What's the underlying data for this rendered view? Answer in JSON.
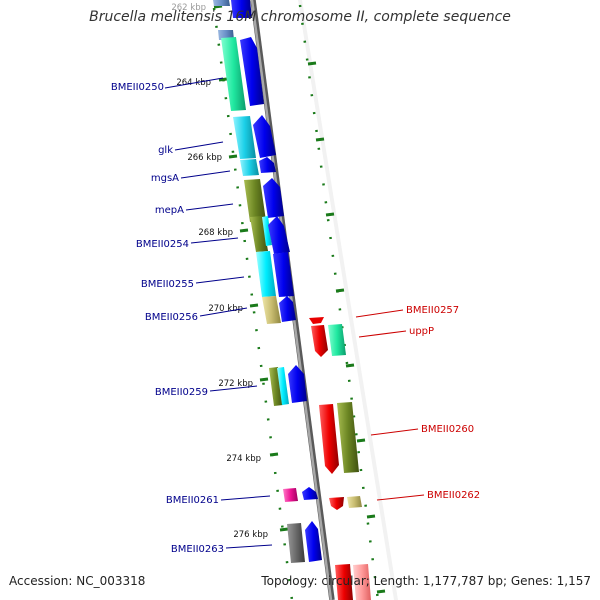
{
  "title": "Brucella melitensis 16M chromosome II, complete sequence",
  "footer": {
    "accession": "Accession: NC_003318",
    "topology": "Topology: circular; Length: 1,177,787 bp; Genes: 1,157"
  },
  "colors": {
    "label_forward": "#00008b",
    "label_reverse": "#cc0000",
    "backbone": "#808080",
    "ring_tick": "#1a7a1a"
  },
  "ruler": [
    {
      "label": "262 kbp"
    },
    {
      "label": "264 kbp"
    },
    {
      "label": "266 kbp"
    },
    {
      "label": "268 kbp"
    },
    {
      "label": "270 kbp"
    },
    {
      "label": "272 kbp"
    },
    {
      "label": "274 kbp"
    },
    {
      "label": "276 kbp"
    }
  ],
  "forward_labels": [
    {
      "name": "BMEII0250"
    },
    {
      "name": "glk"
    },
    {
      "name": "mgsA"
    },
    {
      "name": "mepA"
    },
    {
      "name": "BMEII0254"
    },
    {
      "name": "BMEII0255"
    },
    {
      "name": "BMEII0256"
    },
    {
      "name": "BMEII0259"
    },
    {
      "name": "BMEII0261"
    },
    {
      "name": "BMEII0263"
    }
  ],
  "reverse_labels": [
    {
      "name": "BMEII0257"
    },
    {
      "name": "uppP"
    },
    {
      "name": "BMEII0260"
    },
    {
      "name": "BMEII0262"
    }
  ]
}
